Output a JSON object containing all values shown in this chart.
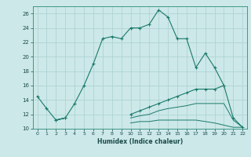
{
  "xlabel": "Humidex (Indice chaleur)",
  "background_color": "#cce8e8",
  "grid_color": "#aad0d0",
  "line_color": "#1a7a6a",
  "x": [
    0,
    1,
    2,
    3,
    4,
    5,
    6,
    7,
    8,
    9,
    10,
    11,
    12,
    13,
    14,
    15,
    16,
    17,
    18,
    19,
    20,
    21,
    22
  ],
  "line1": [
    14.5,
    12.8,
    11.2,
    11.5,
    13.5,
    16.0,
    19.0,
    22.5,
    22.8,
    22.5,
    24.0,
    24.0,
    24.5,
    26.5,
    25.5,
    22.5,
    22.5,
    18.5,
    20.5,
    18.5,
    16.0,
    null,
    null
  ],
  "line2": [
    null,
    null,
    11.2,
    11.5,
    null,
    null,
    null,
    null,
    null,
    null,
    12.0,
    12.5,
    13.0,
    13.5,
    14.0,
    14.5,
    15.0,
    15.5,
    15.5,
    15.5,
    16.0,
    11.5,
    10.2
  ],
  "line3": [
    null,
    null,
    11.2,
    11.5,
    null,
    null,
    null,
    null,
    null,
    null,
    11.5,
    11.8,
    12.0,
    12.5,
    12.8,
    13.0,
    13.2,
    13.5,
    13.5,
    13.5,
    13.5,
    11.2,
    10.2
  ],
  "line4": [
    null,
    null,
    11.2,
    11.5,
    null,
    null,
    null,
    null,
    null,
    null,
    10.8,
    11.0,
    11.0,
    11.2,
    11.2,
    11.2,
    11.2,
    11.2,
    11.0,
    10.8,
    10.5,
    10.2,
    10.2
  ],
  "xlim": [
    -0.5,
    22.5
  ],
  "ylim": [
    10,
    27
  ],
  "yticks": [
    10,
    12,
    14,
    16,
    18,
    20,
    22,
    24,
    26
  ],
  "xticks": [
    0,
    1,
    2,
    3,
    4,
    5,
    6,
    7,
    8,
    9,
    10,
    11,
    12,
    13,
    14,
    15,
    16,
    17,
    18,
    19,
    20,
    21,
    22
  ]
}
